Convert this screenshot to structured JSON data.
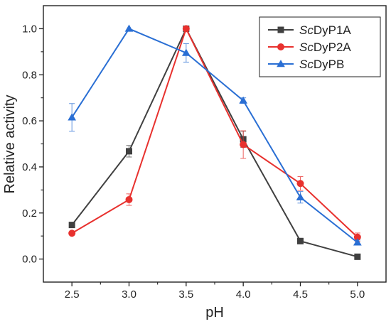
{
  "chart_data": {
    "type": "line",
    "xlabel": "pH",
    "ylabel": "Relative activity",
    "xlim": [
      2.25,
      5.25
    ],
    "ylim": [
      -0.1,
      1.1
    ],
    "x": [
      2.5,
      3.0,
      3.5,
      4.0,
      4.5,
      5.0
    ],
    "x_ticks": [
      "2.5",
      "3.0",
      "3.5",
      "4.0",
      "4.5",
      "5.0"
    ],
    "y_ticks": [
      0.0,
      0.2,
      0.4,
      0.6,
      0.8,
      1.0
    ],
    "y_tick_labels": [
      "0.0",
      "0.2",
      "0.4",
      "0.6",
      "0.8",
      "1.0"
    ],
    "grid": false,
    "legend_position": "top-right",
    "series": [
      {
        "name_prefix": "Sc",
        "name_suffix": "DyP1A",
        "color": "#404040",
        "marker": "square",
        "values": [
          0.148,
          0.468,
          1.0,
          0.52,
          0.078,
          0.01
        ],
        "errors": [
          0.0,
          0.025,
          0.0,
          0.035,
          0.012,
          0.0
        ]
      },
      {
        "name_prefix": "Sc",
        "name_suffix": "DyP2A",
        "color": "#e8312e",
        "marker": "circle",
        "values": [
          0.112,
          0.258,
          1.0,
          0.497,
          0.328,
          0.095
        ],
        "errors": [
          0.0,
          0.025,
          0.0,
          0.06,
          0.03,
          0.018
        ]
      },
      {
        "name_prefix": "Sc",
        "name_suffix": "DyPB",
        "color": "#2a6fd4",
        "marker": "triangle",
        "values": [
          0.615,
          1.0,
          0.895,
          0.688,
          0.268,
          0.072
        ],
        "errors": [
          0.06,
          0.0,
          0.04,
          0.012,
          0.025,
          0.01
        ]
      }
    ]
  }
}
